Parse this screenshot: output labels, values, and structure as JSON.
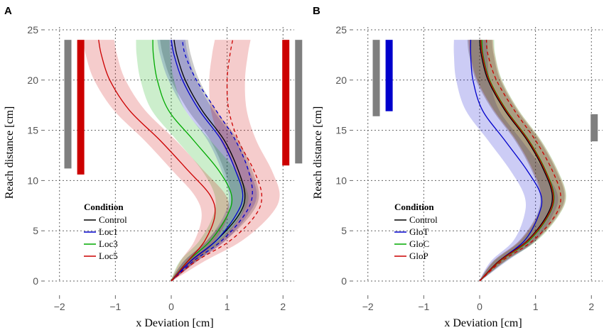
{
  "chart_data": [
    {
      "type": "line",
      "panel": "A",
      "xlabel": "x Deviation [cm]",
      "ylabel": "Reach distance [cm]",
      "xlim": [
        -2.2,
        2.2
      ],
      "ylim": [
        0,
        25
      ],
      "xticks": [
        "−2",
        "−1",
        "0",
        "1",
        "2"
      ],
      "yticks": [
        "0",
        "5",
        "10",
        "15",
        "20",
        "25"
      ],
      "grid": true,
      "legend": {
        "title": "Condition",
        "position": "center-left",
        "entries": [
          {
            "label": "Control",
            "color": "#000000"
          },
          {
            "label": "Loc1",
            "color": "#0000cc"
          },
          {
            "label": "Loc3",
            "color": "#00aa00"
          },
          {
            "label": "Loc5",
            "color": "#cc0000"
          }
        ]
      },
      "series": [
        {
          "name": "Control",
          "color": "#000000",
          "dashed": false,
          "band": 0.25,
          "x": [
            0,
            0.35,
            0.8,
            1.2,
            1.32,
            1.2,
            0.95,
            0.55,
            0.25,
            0.1,
            0.05
          ],
          "y": [
            0,
            2,
            4,
            6.5,
            8.5,
            11,
            14,
            17,
            20,
            22.5,
            24
          ]
        },
        {
          "name": "Loc1",
          "color": "#0000cc",
          "dashed": false,
          "band": 0.25,
          "x": [
            0,
            0.35,
            0.8,
            1.15,
            1.28,
            1.15,
            0.9,
            0.5,
            0.2,
            0.05,
            0.0
          ],
          "y": [
            0,
            2,
            4,
            6.5,
            8.5,
            11,
            14,
            17,
            20,
            22.5,
            24
          ]
        },
        {
          "name": "Loc1 (dashed)",
          "color": "#0000cc",
          "dashed": true,
          "band": 0,
          "x": [
            0,
            0.4,
            0.9,
            1.3,
            1.45,
            1.38,
            1.15,
            0.8,
            0.45,
            0.25,
            0.2
          ],
          "y": [
            0,
            2,
            4,
            6.5,
            8.5,
            11,
            14,
            17,
            20,
            22.5,
            24
          ]
        },
        {
          "name": "Loc3",
          "color": "#00aa00",
          "dashed": false,
          "band": 0.3,
          "x": [
            0,
            0.3,
            0.7,
            1.0,
            1.08,
            0.85,
            0.4,
            -0.05,
            -0.25,
            -0.32,
            -0.33
          ],
          "y": [
            0,
            2,
            4,
            6.5,
            8.5,
            11,
            14,
            17,
            20,
            22.5,
            24
          ]
        },
        {
          "name": "Loc5",
          "color": "#cc0000",
          "dashed": false,
          "band": 0.28,
          "x": [
            0,
            0.3,
            0.6,
            0.78,
            0.7,
            0.3,
            -0.2,
            -0.75,
            -1.1,
            -1.25,
            -1.3
          ],
          "y": [
            0,
            2,
            4,
            6.5,
            8.5,
            11,
            14,
            17,
            20,
            22.5,
            24
          ]
        },
        {
          "name": "Loc5 (dashed)",
          "color": "#cc0000",
          "dashed": true,
          "band": 0.32,
          "x": [
            0,
            0.45,
            1.05,
            1.5,
            1.62,
            1.48,
            1.2,
            1.03,
            1.0,
            1.05,
            1.1
          ],
          "y": [
            0,
            2,
            4,
            6.5,
            8.5,
            11,
            14,
            17,
            20,
            22.5,
            24
          ]
        }
      ],
      "bars": [
        {
          "x": -1.85,
          "y0": 11.2,
          "y1": 24,
          "color": "#7f7f7f"
        },
        {
          "x": -1.62,
          "y0": 10.6,
          "y1": 24,
          "color": "#cc0000"
        },
        {
          "x": 2.05,
          "y0": 11.5,
          "y1": 24,
          "color": "#cc0000"
        },
        {
          "x": 2.28,
          "y0": 11.7,
          "y1": 24,
          "color": "#7f7f7f"
        }
      ]
    },
    {
      "type": "line",
      "panel": "B",
      "xlabel": "x Deviation [cm]",
      "ylabel": "Reach distance [cm]",
      "xlim": [
        -2.2,
        2.2
      ],
      "ylim": [
        0,
        25
      ],
      "xticks": [
        "−2",
        "−1",
        "0",
        "1",
        "2"
      ],
      "yticks": [
        "0",
        "5",
        "10",
        "15",
        "20",
        "25"
      ],
      "grid": true,
      "legend": {
        "title": "Condition",
        "position": "center-left",
        "entries": [
          {
            "label": "Control",
            "color": "#000000"
          },
          {
            "label": "GloT",
            "color": "#0000cc"
          },
          {
            "label": "GloC",
            "color": "#00aa00"
          },
          {
            "label": "GloP",
            "color": "#cc0000"
          }
        ]
      },
      "series": [
        {
          "name": "GloT",
          "color": "#0000cc",
          "dashed": false,
          "band": 0.3,
          "x": [
            0,
            0.35,
            0.8,
            1.05,
            1.1,
            0.85,
            0.45,
            0.05,
            -0.12,
            -0.16,
            -0.16
          ],
          "y": [
            0,
            2,
            4,
            6.5,
            8.5,
            11,
            14,
            17,
            20,
            22.5,
            24
          ]
        },
        {
          "name": "Control",
          "color": "#000000",
          "dashed": false,
          "band": 0.22,
          "x": [
            0,
            0.35,
            0.85,
            1.2,
            1.3,
            1.15,
            0.85,
            0.45,
            0.15,
            0.03,
            0.0
          ],
          "y": [
            0,
            2,
            4,
            6.5,
            8.5,
            11,
            14,
            17,
            20,
            22.5,
            24
          ]
        },
        {
          "name": "GloC",
          "color": "#00aa00",
          "dashed": false,
          "band": 0.22,
          "x": [
            0,
            0.37,
            0.88,
            1.23,
            1.33,
            1.18,
            0.88,
            0.48,
            0.18,
            0.06,
            0.04
          ],
          "y": [
            0,
            2,
            4,
            6.5,
            8.5,
            11,
            14,
            17,
            20,
            22.5,
            24
          ]
        },
        {
          "name": "GloP",
          "color": "#cc0000",
          "dashed": false,
          "band": 0.22,
          "x": [
            0,
            0.36,
            0.86,
            1.22,
            1.32,
            1.17,
            0.87,
            0.47,
            0.17,
            0.05,
            0.02
          ],
          "y": [
            0,
            2,
            4,
            6.5,
            8.5,
            11,
            14,
            17,
            20,
            22.5,
            24
          ]
        },
        {
          "name": "GloP (dashed)",
          "color": "#cc0000",
          "dashed": true,
          "band": 0,
          "x": [
            0,
            0.4,
            0.95,
            1.35,
            1.45,
            1.3,
            1.0,
            0.62,
            0.3,
            0.15,
            0.12
          ],
          "y": [
            0,
            2,
            4,
            6.5,
            8.5,
            11,
            14,
            17,
            20,
            22.5,
            24
          ]
        }
      ],
      "bars": [
        {
          "x": -1.85,
          "y0": 16.4,
          "y1": 24,
          "color": "#7f7f7f"
        },
        {
          "x": -1.62,
          "y0": 16.9,
          "y1": 24,
          "color": "#0000cc"
        },
        {
          "x": 2.05,
          "y0": 13.9,
          "y1": 16.6,
          "color": "#7f7f7f"
        }
      ]
    }
  ]
}
